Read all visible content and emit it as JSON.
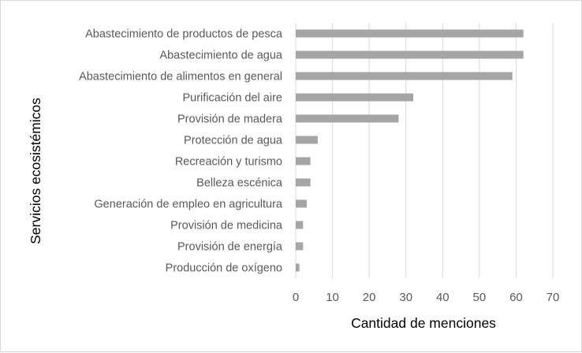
{
  "chart_data": {
    "type": "bar",
    "orientation": "horizontal",
    "categories": [
      "Abastecimiento de productos de pesca",
      "Abastecimiento de agua",
      "Abastecimiento de alimentos en general",
      "Purificación del aire",
      "Provisión de madera",
      "Protección de agua",
      "Recreación y turismo",
      "Belleza escénica",
      "Generación de empleo en agricultura",
      "Provisión de medicina",
      "Provisión de energía",
      "Producción de oxígeno"
    ],
    "values": [
      62,
      62,
      59,
      32,
      28,
      6,
      4,
      4,
      3,
      2,
      2,
      1
    ],
    "xlabel": "Cantidad de menciones",
    "ylabel": "Servicios ecosistémicos",
    "xlim": [
      0,
      70
    ],
    "xticks": [
      "0",
      "10",
      "20",
      "30",
      "40",
      "50",
      "60",
      "70"
    ],
    "grid": "vertical",
    "legend": "none",
    "bar_color": "#a5a5a5",
    "grid_color": "#d9d9d9"
  }
}
